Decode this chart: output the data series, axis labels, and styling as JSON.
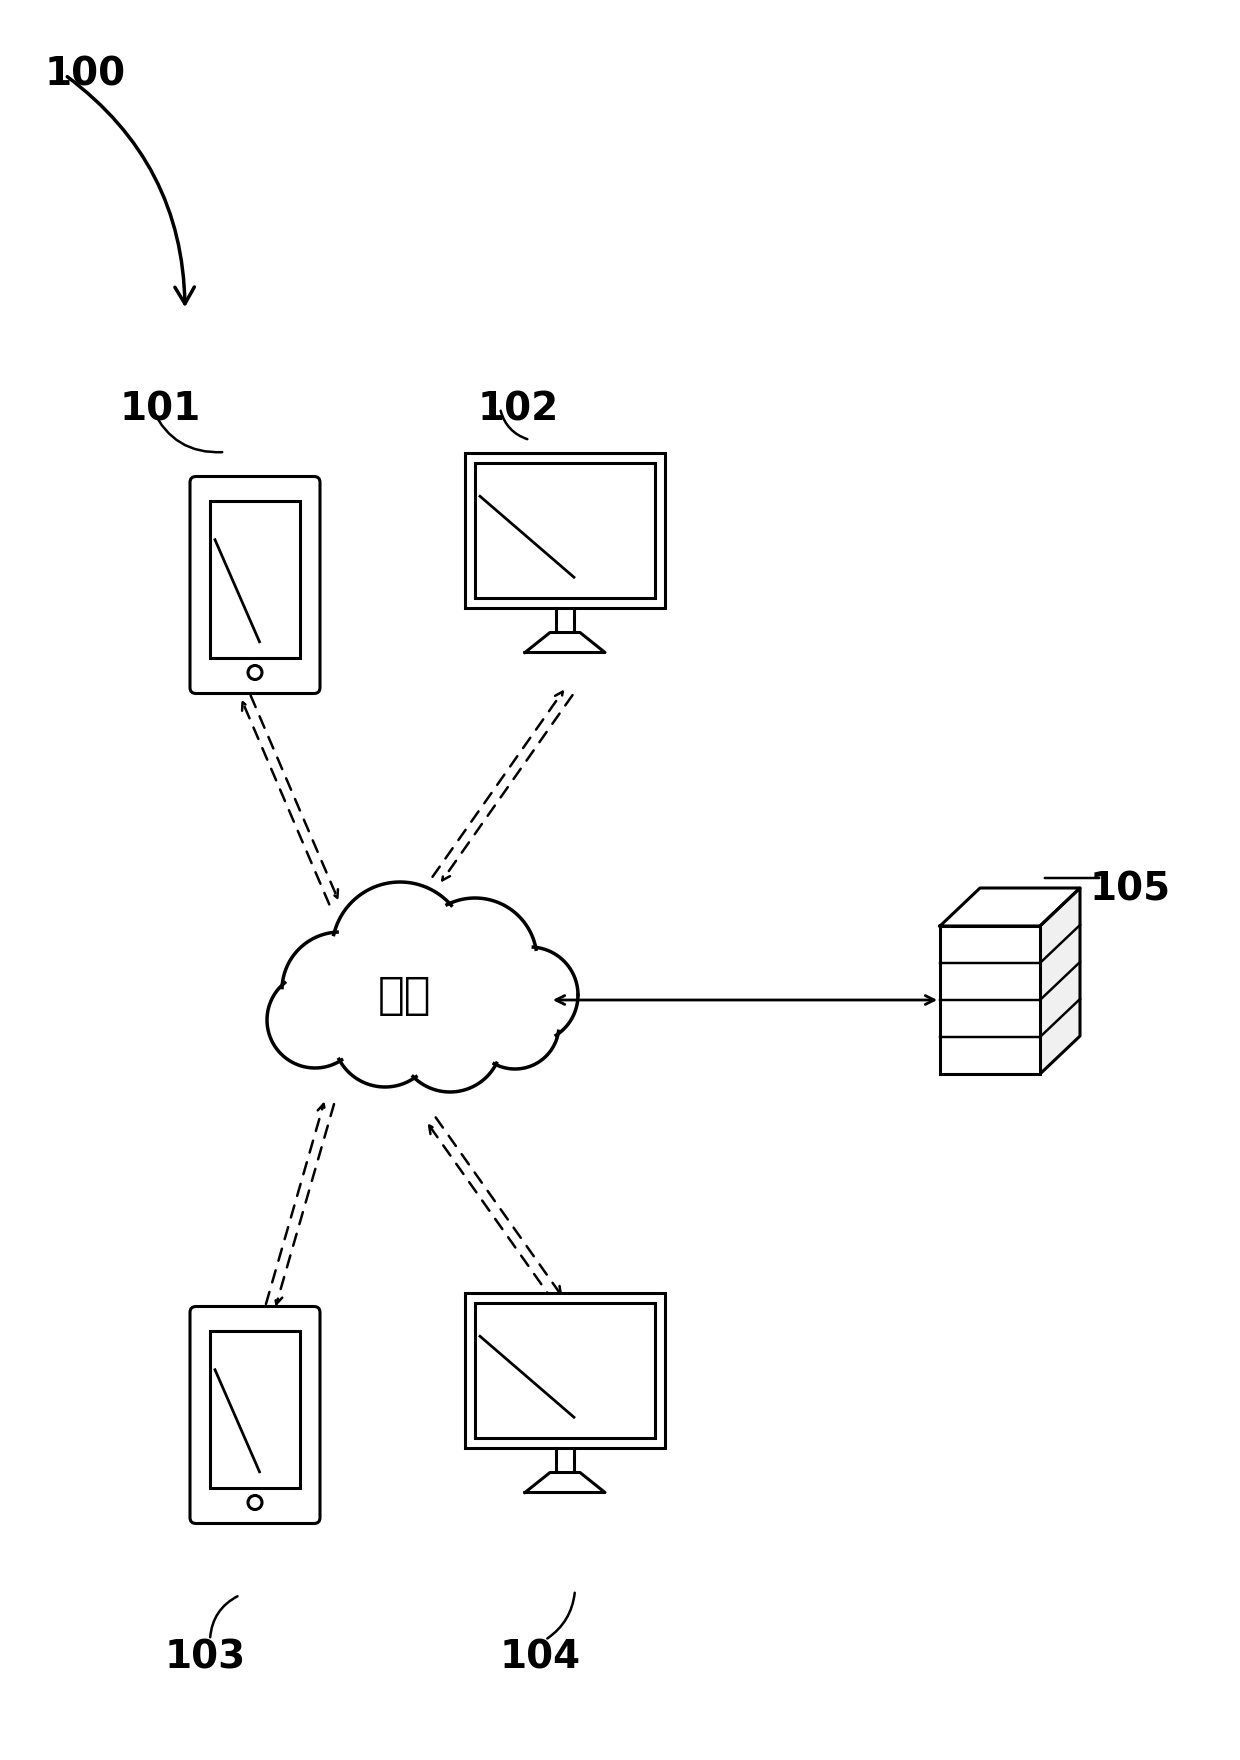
{
  "bg_color": "#ffffff",
  "line_color": "#000000",
  "label_100": "100",
  "label_101": "101",
  "label_102": "102",
  "label_103": "103",
  "label_104": "104",
  "label_105": "105",
  "cloud_text": "云端",
  "figsize": [
    12.4,
    17.6
  ],
  "dpi": 100
}
